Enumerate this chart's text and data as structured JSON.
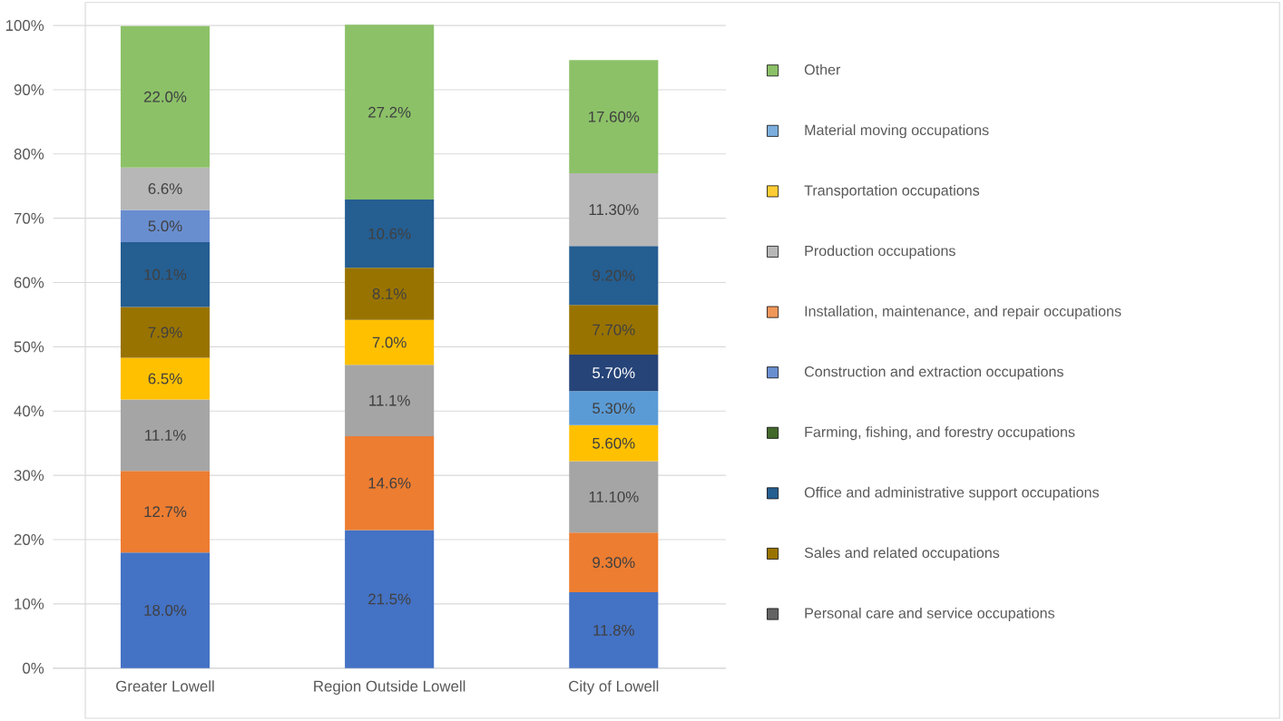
{
  "chart_data": {
    "type": "bar",
    "stacked": true,
    "grid": "y",
    "legend": "right",
    "categories": [
      "Greater Lowell",
      "Region Outside Lowell",
      "City of Lowell"
    ],
    "ylim": [
      0,
      100
    ],
    "yticks": [
      {
        "value": 0,
        "label": "0%"
      },
      {
        "value": 10,
        "label": "10%"
      },
      {
        "value": 20,
        "label": "20%"
      },
      {
        "value": 30,
        "label": "30%"
      },
      {
        "value": 40,
        "label": "40%"
      },
      {
        "value": 50,
        "label": "50%"
      },
      {
        "value": 60,
        "label": "60%"
      },
      {
        "value": 70,
        "label": "70%"
      },
      {
        "value": 80,
        "label": "80%"
      },
      {
        "value": 90,
        "label": "90%"
      },
      {
        "value": 100,
        "label": "100%"
      }
    ],
    "series": [
      {
        "color": "#4472c4",
        "values": [
          18.0,
          21.5,
          11.8
        ],
        "value_labels": [
          "18.0%",
          "21.5%",
          "11.8%"
        ]
      },
      {
        "color": "#ed7d31",
        "values": [
          12.7,
          14.6,
          9.3
        ],
        "value_labels": [
          "12.7%",
          "14.6%",
          "9.30%"
        ]
      },
      {
        "color": "#a5a5a5",
        "values": [
          11.1,
          11.1,
          11.1
        ],
        "value_labels": [
          "11.1%",
          "11.1%",
          "11.10%"
        ]
      },
      {
        "color": "#ffc000",
        "values": [
          6.5,
          7.0,
          5.6
        ],
        "value_labels": [
          "6.5%",
          "7.0%",
          "5.60%"
        ]
      },
      {
        "color": "#5b9bd5",
        "values": [
          null,
          null,
          5.3
        ],
        "value_labels": [
          null,
          null,
          "5.30%"
        ]
      },
      {
        "color": "#264478",
        "values": [
          null,
          null,
          5.7
        ],
        "value_labels": [
          null,
          null,
          "5.70%"
        ]
      },
      {
        "name": "Personal care and service occupations",
        "color": "#636363",
        "values": [
          null,
          null,
          null
        ]
      },
      {
        "name": "Sales and related occupations",
        "color": "#997300",
        "values": [
          7.9,
          8.1,
          7.7
        ],
        "value_labels": [
          "7.9%",
          "8.1%",
          "7.70%"
        ]
      },
      {
        "name": "Office and administrative support occupations",
        "color": "#255e91",
        "values": [
          10.1,
          10.6,
          9.2
        ],
        "value_labels": [
          "10.1%",
          "10.6%",
          "9.20%"
        ]
      },
      {
        "name": "Farming, fishing, and forestry occupations",
        "color": "#43682b",
        "values": [
          null,
          null,
          null
        ]
      },
      {
        "name": "Construction and extraction occupations",
        "color": "#698ed0",
        "values": [
          5.0,
          null,
          null
        ],
        "value_labels": [
          "5.0%",
          null,
          null
        ]
      },
      {
        "name": "Installation, maintenance, and repair occupations",
        "color": "#f1975a",
        "values": [
          null,
          null,
          null
        ]
      },
      {
        "name": "Production occupations",
        "color": "#b7b7b7",
        "values": [
          6.6,
          null,
          11.3
        ],
        "value_labels": [
          "6.6%",
          null,
          "11.30%"
        ]
      },
      {
        "name": "Transportation occupations",
        "color": "#ffcd33",
        "values": [
          null,
          null,
          null
        ]
      },
      {
        "name": "Material moving occupations",
        "color": "#7cafdd",
        "values": [
          null,
          null,
          null
        ]
      },
      {
        "name": "Other",
        "color": "#8cc168",
        "values": [
          22.0,
          27.2,
          17.6
        ],
        "value_labels": [
          "22.0%",
          "27.2%",
          "17.60%"
        ]
      }
    ]
  }
}
